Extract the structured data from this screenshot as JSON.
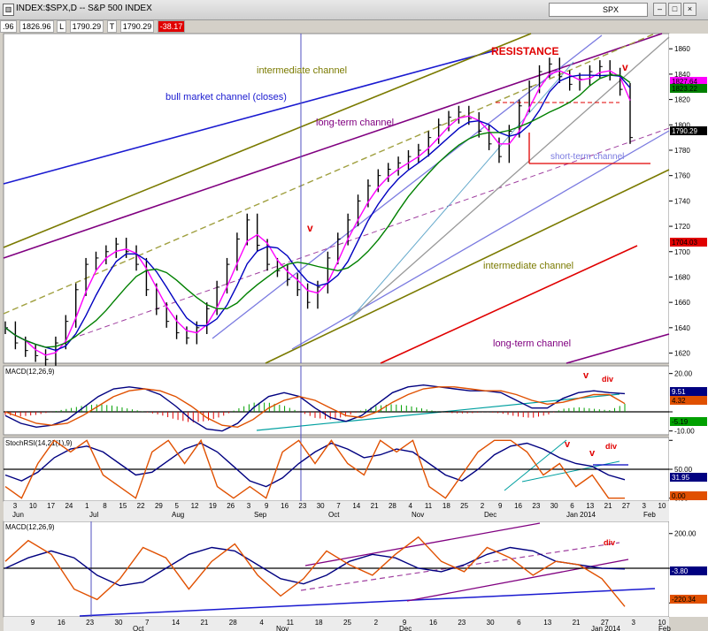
{
  "window": {
    "title": "INDEX:$SPX,D -- S&P 500 INDEX",
    "symbol_field": "SPX",
    "buttons": [
      "–",
      "□",
      "×"
    ]
  },
  "quote": {
    "open_partial": ".96",
    "high": "1826.96",
    "low_label": "L",
    "low": "1790.29",
    "close_label": "T",
    "close": "1790.29",
    "change": "-38.17"
  },
  "colors": {
    "bull_channel": "#1a1ad0",
    "long_term_channel": "#800080",
    "intermediate_channel": "#7a7a00",
    "resistance": "#e00000",
    "short_term_channel": "#7a7ae0",
    "price_bars": "#000000",
    "ma_fast": "#ff00ff",
    "ma_mid": "#0000c0",
    "ma_slow": "#008000",
    "macd_line": "#000080",
    "signal_line": "#e05000",
    "hist_pos": "#00a000",
    "hist_neg": "#e00000"
  },
  "chart_data": [
    {
      "type": "line",
      "panel": "price",
      "ylim": [
        1612,
        1872
      ],
      "y_ticks": [
        1620,
        1640,
        1660,
        1680,
        1700,
        1720,
        1740,
        1760,
        1780,
        1800,
        1820,
        1840,
        1860
      ],
      "x_tick_labels": [
        "3",
        "10",
        "17",
        "24",
        "1",
        "8",
        "15",
        "22",
        "29",
        "5",
        "12",
        "19",
        "26",
        "3",
        "9",
        "16",
        "23",
        "30",
        "7",
        "14",
        "21",
        "28",
        "4",
        "11",
        "18",
        "25",
        "2",
        "9",
        "16",
        "23",
        "30",
        "6",
        "13",
        "21",
        "27",
        "3",
        "10"
      ],
      "month_labels": [
        "Jun",
        "Jul",
        "Aug",
        "Sep",
        "Oct",
        "Nov",
        "Dec",
        "Jan 2014",
        "Feb"
      ],
      "price_labels": [
        {
          "value": "1827.64",
          "color": "#ff00ff"
        },
        {
          "value": "1823.22",
          "color": "#008000"
        },
        {
          "value": "1790.29",
          "color": "#000000"
        },
        {
          "value": "1704.03",
          "color": "#e00000"
        }
      ],
      "annotations": [
        "intermediate channel",
        "bull market channel  (closes)",
        "long-term channel",
        "RESISTANCE",
        "v",
        "v",
        "short-term channel",
        "intermediate channel",
        "long-term channel"
      ],
      "close": [
        1640,
        1628,
        1622,
        1618,
        1615,
        1628,
        1645,
        1670,
        1690,
        1695,
        1700,
        1706,
        1700,
        1690,
        1670,
        1655,
        1645,
        1636,
        1632,
        1640,
        1655,
        1672,
        1690,
        1710,
        1725,
        1705,
        1690,
        1685,
        1678,
        1670,
        1660,
        1672,
        1695,
        1710,
        1725,
        1740,
        1752,
        1760,
        1765,
        1770,
        1775,
        1780,
        1790,
        1800,
        1806,
        1810,
        1805,
        1795,
        1785,
        1775,
        1795,
        1815,
        1830,
        1842,
        1848,
        1838,
        1832,
        1836,
        1842,
        1846,
        1840,
        1828,
        1790
      ]
    },
    {
      "type": "line",
      "panel": "macd_daily",
      "title": "MACD(12,26,9)",
      "ylim": [
        -12,
        24
      ],
      "y_ticks": [
        20,
        0,
        -10
      ],
      "y_tick_labels": [
        "20.00",
        "",
        "-10.00"
      ],
      "value_labels": [
        {
          "value": "9.51",
          "color": "#000080"
        },
        {
          "value": "4.32",
          "color": "#e05000"
        },
        {
          "value": "-5.19",
          "color": "#00a000"
        }
      ],
      "annotations": [
        "v",
        "div"
      ],
      "series": [
        {
          "values": [
            -2,
            -6,
            -8,
            -7,
            -4,
            2,
            8,
            12,
            13,
            12,
            9,
            3,
            -4,
            -9,
            -10,
            -6,
            2,
            8,
            10,
            8,
            2,
            -3,
            -5,
            -2,
            4,
            10,
            13,
            14,
            13,
            12,
            11,
            11,
            10,
            6,
            2,
            2,
            7,
            10,
            11,
            10,
            9.5
          ]
        },
        {
          "values": [
            0,
            -3,
            -6,
            -7,
            -6,
            -2,
            3,
            8,
            11,
            12,
            11,
            8,
            3,
            -3,
            -7,
            -8,
            -4,
            2,
            6,
            8,
            6,
            2,
            -2,
            -3,
            0,
            5,
            9,
            12,
            13,
            13,
            12,
            11,
            11,
            9,
            6,
            4,
            5,
            7,
            9,
            9,
            4.3
          ]
        }
      ]
    },
    {
      "type": "line",
      "panel": "stochrsi",
      "title": "StochRSI(14,21(1),9)",
      "ylim": [
        -5,
        105
      ],
      "y_ticks": [
        100,
        50,
        0
      ],
      "y_tick_labels": [
        "",
        "50.00",
        "0.00"
      ],
      "value_labels": [
        {
          "value": "31.95",
          "color": "#000080"
        },
        {
          "value": "0.00",
          "color": "#e05000"
        }
      ],
      "annotations": [
        "v",
        "v",
        "div"
      ],
      "series": [
        {
          "values": [
            40,
            30,
            45,
            70,
            85,
            90,
            80,
            60,
            40,
            45,
            65,
            85,
            95,
            80,
            55,
            30,
            20,
            35,
            60,
            80,
            95,
            85,
            70,
            75,
            85,
            80,
            60,
            40,
            30,
            50,
            75,
            90,
            95,
            85,
            70,
            60,
            55,
            40,
            32
          ]
        },
        {
          "values": [
            20,
            0,
            60,
            100,
            80,
            100,
            40,
            20,
            0,
            80,
            100,
            60,
            100,
            20,
            0,
            20,
            0,
            80,
            100,
            60,
            100,
            60,
            40,
            100,
            80,
            100,
            20,
            0,
            40,
            80,
            100,
            100,
            80,
            40,
            60,
            20,
            40,
            0,
            0
          ]
        }
      ]
    },
    {
      "type": "line",
      "panel": "macd_weekly_view",
      "title": "MACD(12,26,9)",
      "ylim": [
        -280,
        270
      ],
      "y_ticks": [
        200,
        0,
        -200
      ],
      "y_tick_labels": [
        "200.00",
        "",
        ""
      ],
      "value_labels": [
        {
          "value": "-3.80",
          "color": "#000080"
        },
        {
          "value": "-220.34",
          "color": "#e05000"
        }
      ],
      "x_tick_labels": [
        "9",
        "16",
        "23",
        "30",
        "7",
        "14",
        "21",
        "28",
        "4",
        "11",
        "18",
        "25",
        "2",
        "9",
        "16",
        "23",
        "30",
        "6",
        "13",
        "21",
        "27",
        "3",
        "10"
      ],
      "month_labels": [
        "Oct",
        "Nov",
        "Dec",
        "Jan 2014",
        "Feb"
      ],
      "annotations": [
        "div"
      ],
      "series": [
        {
          "values": [
            0,
            60,
            100,
            60,
            -40,
            -100,
            -80,
            0,
            80,
            120,
            100,
            20,
            -60,
            -90,
            -40,
            40,
            80,
            60,
            0,
            -20,
            20,
            80,
            120,
            100,
            40,
            20,
            0,
            -3.8
          ]
        },
        {
          "values": [
            40,
            160,
            80,
            -120,
            -180,
            -60,
            120,
            60,
            -120,
            40,
            140,
            -40,
            -160,
            -60,
            100,
            20,
            -40,
            80,
            180,
            40,
            -20,
            120,
            60,
            -40,
            40,
            20,
            -60,
            -220.3
          ]
        }
      ]
    }
  ]
}
